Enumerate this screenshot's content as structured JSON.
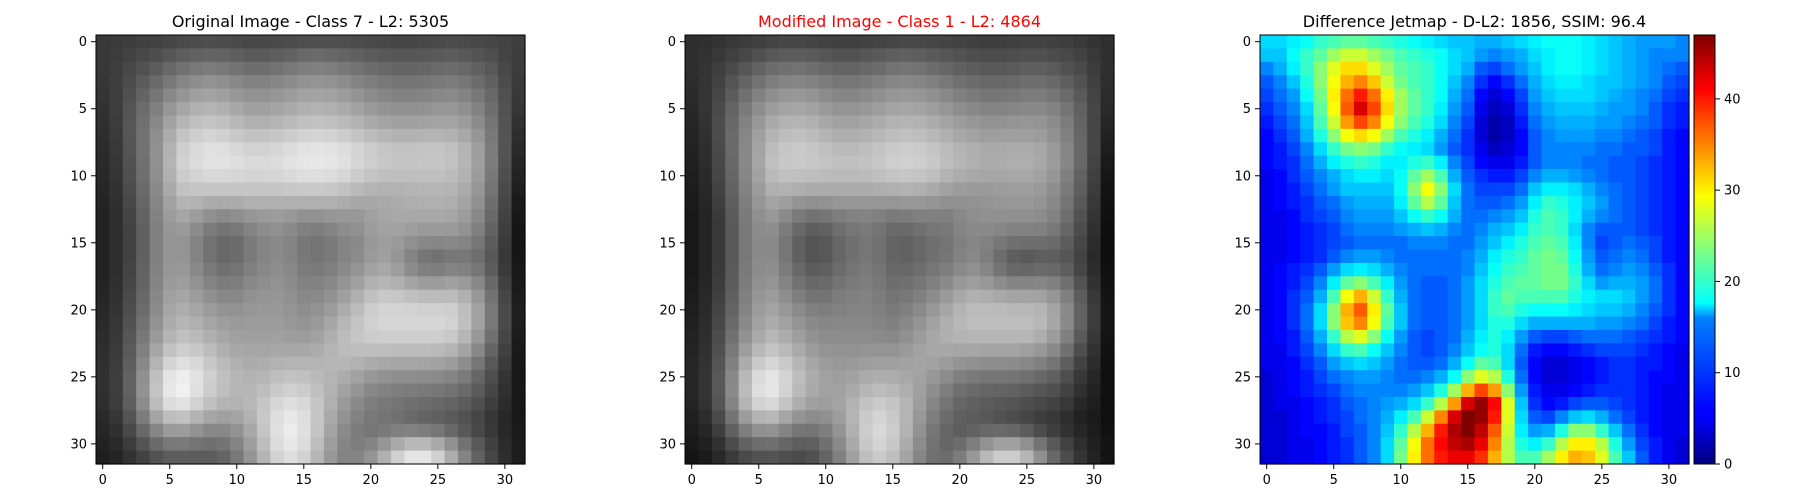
{
  "chart_data": [
    {
      "type": "heatmap",
      "title": "Original Image - Class 7 - L2: 5305",
      "title_color": "#000000",
      "colormap": "gray",
      "grid_size": 32,
      "x_ticks": [
        0,
        5,
        10,
        15,
        20,
        25,
        30
      ],
      "y_ticks": [
        0,
        5,
        10,
        15,
        20,
        25,
        30
      ],
      "xlim": [
        0,
        31
      ],
      "ylim": [
        31,
        0
      ],
      "value_range": [
        0,
        255
      ],
      "values": [
        "56,58,61,64,66,70,74,76,78,76,74,72,72,74,76,78,80,80,78,76,74,72,70,70,72,74,76,74,72,70,66,62",
        "56,60,66,72,78,86,94,98,100,98,94,90,90,94,98,104,106,104,100,96,92,88,86,86,88,90,92,88,84,78,68,60",
        "56,62,72,82,92,104,114,120,124,120,114,110,110,114,120,126,128,126,120,114,108,104,100,100,102,106,108,104,96,88,72,60",
        "54,62,76,92,106,120,134,142,146,142,136,130,130,134,140,146,148,146,140,132,126,120,116,116,118,122,124,118,108,96,76,58",
        "52,62,80,100,118,136,150,160,164,160,152,146,146,150,156,162,164,162,156,148,140,134,130,130,132,136,138,132,120,104,80,56",
        "50,62,84,108,128,150,166,176,180,176,168,160,160,164,170,176,178,176,170,162,154,148,144,144,146,150,150,144,130,110,82,54",
        "48,60,86,112,136,162,182,192,196,192,184,176,176,180,186,192,194,192,186,178,170,164,160,160,162,164,164,156,140,116,84,50",
        "46,58,86,114,142,172,196,206,212,208,200,194,194,198,204,210,212,210,204,196,188,182,178,178,180,180,178,168,150,120,84,46",
        "44,56,84,114,144,178,206,218,224,222,216,210,210,214,220,226,228,226,220,212,204,198,194,194,196,196,192,180,158,124,84,42",
        "42,54,82,112,144,180,210,220,226,226,222,218,218,220,226,230,232,230,224,214,206,200,196,196,198,198,194,182,160,124,82,38",
        "40,52,80,110,142,176,204,212,216,216,214,212,212,214,218,222,222,220,214,204,196,192,190,190,192,192,188,178,156,120,78,34",
        "38,50,76,106,138,170,194,198,198,198,198,198,198,198,200,202,202,200,194,186,180,178,178,180,182,182,180,170,150,116,74,30",
        "36,48,72,102,134,162,180,178,172,170,172,176,176,176,176,176,176,176,172,168,168,170,172,174,176,176,174,164,144,110,70,26",
        "34,46,68,98,130,156,166,156,144,138,142,150,154,156,152,146,146,150,152,152,160,166,168,168,168,168,166,156,136,104,66,24",
        "34,46,66,96,128,150,154,140,124,116,120,132,140,144,138,128,126,132,140,144,156,162,162,158,154,154,154,146,128,98,62,22",
        "34,46,66,96,128,148,148,132,114,104,108,122,132,138,132,120,116,122,132,138,152,158,154,144,136,134,136,132,118,92,58,22",
        "34,46,66,96,128,148,148,132,114,104,108,122,132,138,132,120,116,122,132,140,154,160,150,132,118,114,120,120,110,88,56,22",
        "34,46,68,98,130,150,152,138,122,112,116,128,136,142,136,124,122,128,138,148,162,168,158,140,128,126,132,130,118,92,58,24",
        "36,48,70,100,132,154,158,146,132,124,126,136,142,146,140,130,130,136,148,160,176,182,176,164,156,156,160,154,136,104,64,26",
        "38,50,74,104,136,160,166,156,144,136,136,144,148,150,144,136,138,146,160,176,192,200,198,192,188,188,188,176,152,114,70,28",
        "40,52,78,108,140,166,174,166,156,148,146,150,152,152,148,142,146,156,172,188,204,212,212,210,208,208,206,190,162,120,74,30",
        "42,54,82,114,146,172,182,176,166,158,154,156,156,156,152,148,154,166,182,196,208,214,214,214,214,214,210,192,162,120,74,30",
        "44,56,86,120,154,180,192,186,176,166,160,160,160,160,158,156,162,174,188,198,204,206,206,206,206,206,200,182,152,112,70,28",
        "46,58,90,128,166,194,206,200,188,176,168,166,166,168,168,168,172,180,188,190,190,190,188,188,188,186,180,164,136,100,64,26",
        "48,60,94,136,180,212,224,216,200,186,176,172,174,178,180,180,180,182,182,178,172,168,166,166,164,162,156,142,118,88,58,24",
        "48,62,98,144,192,228,238,226,208,192,182,178,182,190,194,192,186,180,172,162,152,146,142,142,140,138,132,122,102,78,52,24",
        "48,62,98,146,196,232,240,224,204,190,182,182,190,202,208,204,192,178,162,148,136,130,126,124,122,118,114,106,90,70,48,24",
        "46,60,94,140,188,220,226,210,192,180,178,184,198,214,222,216,198,176,154,138,126,120,116,112,108,104,100,92,80,62,44,24",
        "42,54,84,124,164,190,194,180,166,160,164,178,200,222,232,222,198,170,146,130,120,116,112,106,100,96,90,82,70,54,40,24",
        "38,48,72,104,134,154,156,146,136,136,146,168,196,224,236,224,196,164,138,124,118,122,128,130,126,118,104,88,72,56,40,26",
        "34,42,60,84,106,120,122,116,112,116,132,158,190,220,232,220,190,158,134,126,132,150,170,184,184,170,144,114,88,64,44,28",
        "30,36,50,66,82,92,94,92,92,100,120,148,180,210,222,210,182,152,132,132,148,176,208,228,228,208,172,132,98,70,46,28"
      ]
    },
    {
      "type": "heatmap",
      "title": "Modified Image - Class 1 - L2: 4864",
      "title_color": "#ff0000",
      "colormap": "gray",
      "grid_size": 32,
      "x_ticks": [
        0,
        5,
        10,
        15,
        20,
        25,
        30
      ],
      "y_ticks": [
        0,
        5,
        10,
        15,
        20,
        25,
        30
      ],
      "xlim": [
        0,
        31
      ],
      "ylim": [
        31,
        0
      ],
      "value_range": [
        0,
        255
      ],
      "values": [
        "46,48,52,56,60,64,68,70,70,68,66,64,64,66,68,70,72,72,70,68,66,64,62,62,64,66,66,64,62,58,52,48",
        "46,50,56,64,72,80,88,92,92,90,86,82,82,86,90,94,96,94,90,86,82,78,76,76,78,80,80,76,72,66,56,48",
        "46,52,62,74,86,98,108,112,114,110,104,100,100,104,108,114,116,114,108,102,96,92,88,88,90,94,94,90,82,74,60,48",
        "44,52,66,84,100,114,126,132,134,130,124,118,118,122,128,134,136,134,128,120,112,108,104,104,106,110,110,104,94,82,64,46",
        "42,52,70,92,112,130,142,150,152,148,140,134,134,138,144,150,152,150,144,136,128,122,118,118,120,124,124,118,106,90,68,44",
        "40,52,74,100,122,142,156,164,166,162,154,148,148,152,158,164,166,164,158,150,142,136,132,132,134,136,136,130,116,96,70,42",
        "38,50,76,104,130,152,170,178,180,176,168,162,162,166,172,178,180,178,172,164,156,150,146,146,148,150,148,140,124,100,70,38",
        "36,48,76,106,134,160,180,190,192,188,180,174,174,178,184,190,192,190,184,176,168,162,158,158,160,160,156,146,128,102,70,34",
        "34,46,74,106,136,164,188,198,202,198,192,186,186,190,196,202,204,202,196,188,180,174,170,170,172,172,166,154,134,104,70,30",
        "32,44,72,104,136,166,192,200,202,200,196,192,192,194,200,206,208,206,200,190,182,176,172,172,174,174,168,156,134,104,68,26",
        "30,42,70,102,134,162,186,192,192,190,188,186,186,188,192,196,198,196,190,180,172,168,166,166,168,168,162,150,128,98,64,22",
        "28,40,66,98,130,156,176,178,174,172,172,172,172,172,174,176,178,176,170,162,156,154,154,156,158,158,154,142,122,94,60,20",
        "26,38,62,94,126,150,164,158,148,144,146,150,150,150,150,150,152,152,148,144,144,146,148,150,152,152,148,136,116,88,56,18",
        "24,36,58,90,122,144,152,138,122,114,118,126,130,132,128,122,124,128,128,128,136,142,144,144,144,144,140,130,110,82,52,16",
        "24,36,56,88,120,140,142,124,104,94,98,110,118,122,116,106,106,112,118,120,132,138,138,134,130,130,128,120,102,76,48,14",
        "24,36,56,88,120,138,138,118,96,84,88,102,112,118,112,100,98,104,112,116,128,134,130,120,112,110,110,106,92,70,44,14",
        "24,36,56,88,120,138,138,118,96,84,88,102,112,118,112,100,98,104,112,118,130,136,126,108,94,90,94,94,86,66,42,14",
        "24,36,58,90,122,140,142,124,104,92,96,108,116,122,116,104,104,110,118,126,138,144,134,116,104,102,106,104,94,70,44,16",
        "26,38,60,92,124,144,148,132,114,104,106,116,122,126,120,110,112,118,128,138,152,158,152,140,132,132,134,128,112,82,50,18",
        "28,40,64,96,128,150,156,142,126,116,116,124,128,130,124,116,120,128,140,154,168,176,174,168,164,164,162,150,128,92,56,20",
        "30,42,68,100,132,156,164,152,138,128,126,130,132,132,128,122,128,138,152,166,180,188,188,186,184,184,180,164,138,98,60,22",
        "32,44,72,106,138,162,172,162,148,138,134,136,136,136,132,128,136,148,162,174,184,190,190,190,190,190,184,166,138,98,60,22",
        "34,46,76,112,146,170,182,172,158,146,140,140,140,140,138,136,144,156,168,176,180,182,182,182,182,182,174,156,128,90,56,20",
        "36,48,80,120,158,184,196,186,170,156,148,146,146,148,148,148,154,162,168,168,166,166,164,164,164,160,152,138,112,78,50,18",
        "38,50,84,128,172,202,214,202,182,166,156,152,154,158,160,160,162,164,162,156,148,144,142,142,140,136,128,116,94,66,44,16",
        "38,52,88,136,184,218,228,212,190,172,162,158,162,170,174,172,168,162,152,140,128,122,118,118,116,112,104,96,78,56,38,16",
        "38,52,88,138,188,222,230,210,186,170,162,162,170,182,188,184,174,160,142,126,112,106,102,100,98,92,86,80,66,48,34,16",
        "36,50,84,132,180,210,216,196,174,160,158,164,178,194,202,196,180,158,134,116,102,96,92,88,84,78,72,66,56,40,30,16",
        "32,44,74,116,156,180,184,166,148,140,144,158,180,202,212,202,180,152,126,108,96,92,88,82,76,70,62,56,46,34,26,16",
        "28,38,62,96,126,144,146,132,118,116,126,148,176,204,216,204,178,146,118,102,94,98,104,106,102,92,76,62,50,38,28,18",
        "24,32,50,76,98,110,112,102,94,96,112,138,170,200,212,200,172,140,114,102,108,126,146,160,160,144,116,88,66,46,32,20",
        "20,26,40,58,74,82,84,78,74,80,100,128,160,190,202,190,164,134,112,108,124,152,184,204,204,182,144,104,76,52,34,20"
      ]
    },
    {
      "type": "heatmap",
      "title": "Difference Jetmap - D-L2: 1856, SSIM: 96.4",
      "title_color": "#000000",
      "colormap": "jet",
      "grid_size": 32,
      "x_ticks": [
        0,
        5,
        10,
        15,
        20,
        25,
        30
      ],
      "y_ticks": [
        0,
        5,
        10,
        15,
        20,
        25,
        30
      ],
      "xlim": [
        0,
        31
      ],
      "ylim": [
        31,
        0
      ],
      "value_range": [
        0,
        47
      ],
      "colorbar_ticks": [
        0,
        10,
        20,
        30,
        40
      ],
      "values": [
        "16,16,17,18,20,21,22,22,21,20,19,18,17,16,15,15,14,14,15,16,17,18,18,18,17,16,15,14,13,13,13,12",
        "15,15,18,20,22,25,27,27,25,23,21,20,19,18,16,15,13,12,13,14,16,17,18,18,17,16,15,14,13,12,12,12",
        "12,14,17,20,24,28,31,31,28,25,22,21,20,18,16,14,10,9,11,13,15,17,18,18,17,16,15,14,13,12,11,10",
        "10,12,15,19,24,29,33,35,32,27,23,21,20,18,15,12,8,6,8,11,14,16,17,17,16,15,15,14,13,12,10,9",
        "9,11,13,18,23,30,36,40,36,30,25,22,20,18,14,11,6,4,6,9,13,15,16,16,16,15,14,13,12,11,9,8",
        "8,10,12,16,22,29,37,43,38,31,25,22,20,17,13,10,5,3,4,8,12,14,15,15,15,14,13,13,12,10,8,7",
        "7,9,11,15,21,27,34,38,35,29,24,21,19,16,12,9,4,2,3,7,11,13,14,14,14,13,13,12,11,10,8,7",
        "6,8,10,14,19,24,29,31,29,25,21,19,17,14,11,8,4,2,3,6,10,12,13,13,13,12,12,11,10,9,7,6",
        "6,7,9,12,16,20,23,24,23,20,18,17,16,13,10,8,5,3,4,6,10,12,12,12,12,11,11,10,10,9,7,6",
        "6,7,8,11,14,17,19,20,19,17,17,19,20,17,12,9,6,5,5,7,10,12,12,12,11,11,10,10,9,8,7,6",
        "5,6,8,10,12,14,16,17,17,16,18,22,25,21,14,10,8,7,7,9,12,14,14,13,12,11,10,10,9,8,7,6",
        "5,6,7,9,11,13,15,15,15,15,18,24,29,24,16,11,9,9,9,11,15,17,17,16,14,12,11,10,9,8,7,6",
        "5,6,7,8,10,11,13,14,14,14,17,22,26,22,15,11,10,10,11,13,17,20,19,17,15,13,11,10,9,8,7,6",
        "5,5,6,8,9,10,12,13,13,13,15,18,20,18,14,11,11,12,13,15,19,21,20,17,14,12,11,10,9,8,7,6",
        "5,5,6,7,8,9,11,12,12,12,13,14,15,14,12,11,12,14,15,17,20,21,20,16,12,10,10,10,9,8,7,6",
        "5,5,6,7,8,9,10,11,11,11,11,12,12,12,11,11,13,15,17,19,21,22,21,17,12,9,10,11,10,9,7,6",
        "5,5,6,7,8,10,12,13,13,12,11,11,11,11,11,12,14,17,19,20,22,23,22,18,13,10,11,12,11,9,7,6",
        "5,6,7,8,10,13,16,17,16,14,12,11,11,11,11,12,15,18,20,21,22,23,23,19,14,11,12,13,12,10,8,6",
        "5,6,7,9,12,17,22,24,21,17,13,11,10,10,11,13,16,19,21,22,22,23,23,20,16,13,14,14,13,11,8,6",
        "5,6,8,10,14,21,29,33,27,20,14,11,10,10,11,13,16,20,22,21,21,21,21,19,17,16,16,15,13,11,8,6",
        "5,6,8,11,16,24,33,37,30,22,15,11,10,10,11,13,16,20,21,19,18,18,18,17,16,15,15,14,12,10,8,6",
        "5,6,8,11,16,24,32,35,29,21,15,11,10,10,11,13,16,19,19,16,14,14,14,14,14,13,13,12,11,9,7,6",
        "5,6,7,10,14,20,26,28,24,18,13,10,9,10,11,14,17,19,17,13,10,9,9,10,11,11,11,10,9,8,7,6",
        "5,5,7,9,12,16,20,21,18,15,12,10,9,10,12,15,18,19,16,11,7,6,6,7,8,9,9,9,8,7,6,5",
        "5,5,6,8,10,13,15,16,15,13,11,10,10,11,14,18,22,21,16,10,6,4,4,5,6,7,8,8,7,7,6,5",
        "4,5,6,7,9,11,12,13,13,12,11,11,12,14,18,24,28,26,19,11,6,4,4,5,6,7,8,8,7,6,6,5",
        "4,5,6,7,8,9,11,12,12,12,12,13,15,19,25,33,38,34,24,13,7,5,5,6,7,8,8,8,7,6,5,5",
        "4,5,5,6,7,8,10,11,12,13,14,16,20,26,34,43,46,41,28,15,8,6,7,9,10,10,9,8,7,6,5,5",
        "4,4,5,6,7,8,9,11,12,14,17,21,27,35,43,47,46,40,28,16,10,9,12,15,16,14,11,9,7,6,5,5",
        "4,4,5,6,6,7,9,10,12,15,20,26,33,40,45,47,44,37,27,17,13,14,19,24,24,20,15,11,8,6,5,5",
        "4,4,5,5,6,7,8,10,12,16,22,29,36,41,44,45,42,35,26,19,17,20,26,30,30,26,19,13,9,7,5,4",
        "4,4,5,5,6,7,8,10,12,16,23,30,36,40,42,42,39,33,26,21,21,25,30,33,32,28,21,15,10,7,5,4"
      ]
    }
  ]
}
